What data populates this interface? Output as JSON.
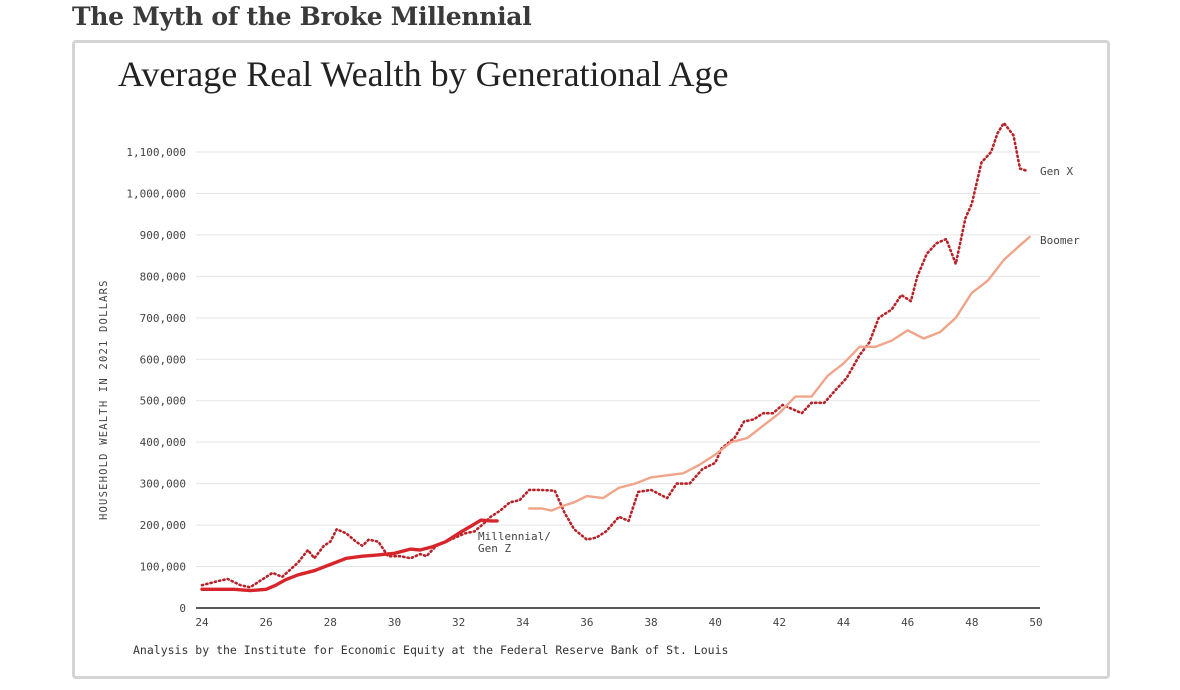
{
  "page_title": "The Myth of the Broke Millennial",
  "chart_data": {
    "type": "line",
    "title": "Average Real Wealth by Generational Age",
    "ylabel": "HOUSEHOLD WEALTH IN 2021 DOLLARS",
    "xlabel": "",
    "xlim": [
      24,
      50
    ],
    "ylim": [
      0,
      1100000
    ],
    "x_ticks": [
      "24",
      "26",
      "28",
      "30",
      "32",
      "34",
      "36",
      "38",
      "40",
      "42",
      "44",
      "46",
      "48",
      "50"
    ],
    "y_ticks": [
      "0",
      "100,000",
      "200,000",
      "300,000",
      "400,000",
      "500,000",
      "600,000",
      "700,000",
      "800,000",
      "900,000",
      "1,000,000",
      "1,100,000"
    ],
    "footnote": "Analysis by the Institute for Economic Equity at the Federal Reserve Bank of St. Louis",
    "colors": {
      "millennial": "#d7262b",
      "genx": "#b8232a",
      "boomer": "#f0a58a",
      "grid": "#e4e4e4",
      "text": "#444444"
    },
    "series": [
      {
        "name": "Gen X",
        "style": "dotted",
        "points": [
          [
            24,
            55000
          ],
          [
            24.5,
            65000
          ],
          [
            24.8,
            70000
          ],
          [
            25.2,
            55000
          ],
          [
            25.5,
            50000
          ],
          [
            25.8,
            65000
          ],
          [
            26.2,
            85000
          ],
          [
            26.5,
            75000
          ],
          [
            27,
            110000
          ],
          [
            27.3,
            140000
          ],
          [
            27.5,
            120000
          ],
          [
            27.8,
            150000
          ],
          [
            28,
            160000
          ],
          [
            28.2,
            190000
          ],
          [
            28.5,
            180000
          ],
          [
            28.8,
            160000
          ],
          [
            29,
            150000
          ],
          [
            29.2,
            165000
          ],
          [
            29.5,
            160000
          ],
          [
            29.8,
            125000
          ],
          [
            30.2,
            125000
          ],
          [
            30.5,
            120000
          ],
          [
            30.8,
            130000
          ],
          [
            31,
            125000
          ],
          [
            31.3,
            150000
          ],
          [
            31.6,
            160000
          ],
          [
            31.9,
            170000
          ],
          [
            32.2,
            180000
          ],
          [
            32.5,
            185000
          ],
          [
            32.8,
            205000
          ],
          [
            33,
            220000
          ],
          [
            33.3,
            235000
          ],
          [
            33.6,
            255000
          ],
          [
            33.9,
            260000
          ],
          [
            34.2,
            285000
          ],
          [
            34.5,
            285000
          ],
          [
            35,
            283000
          ],
          [
            35.3,
            230000
          ],
          [
            35.6,
            190000
          ],
          [
            36,
            165000
          ],
          [
            36.3,
            170000
          ],
          [
            36.6,
            185000
          ],
          [
            37,
            220000
          ],
          [
            37.3,
            210000
          ],
          [
            37.6,
            280000
          ],
          [
            38,
            285000
          ],
          [
            38.5,
            265000
          ],
          [
            38.8,
            300000
          ],
          [
            39.2,
            300000
          ],
          [
            39.6,
            335000
          ],
          [
            40,
            350000
          ],
          [
            40.2,
            385000
          ],
          [
            40.6,
            410000
          ],
          [
            40.9,
            450000
          ],
          [
            41.2,
            455000
          ],
          [
            41.5,
            470000
          ],
          [
            41.8,
            470000
          ],
          [
            42.1,
            490000
          ],
          [
            42.4,
            480000
          ],
          [
            42.7,
            470000
          ],
          [
            43,
            495000
          ],
          [
            43.4,
            495000
          ],
          [
            43.8,
            530000
          ],
          [
            44.1,
            555000
          ],
          [
            44.5,
            610000
          ],
          [
            44.8,
            640000
          ],
          [
            45.1,
            700000
          ],
          [
            45.5,
            720000
          ],
          [
            45.8,
            755000
          ],
          [
            46.1,
            740000
          ],
          [
            46.3,
            800000
          ],
          [
            46.6,
            855000
          ],
          [
            46.9,
            880000
          ],
          [
            47.2,
            890000
          ],
          [
            47.5,
            830000
          ],
          [
            47.8,
            940000
          ],
          [
            48,
            975000
          ],
          [
            48.3,
            1075000
          ],
          [
            48.6,
            1100000
          ],
          [
            48.8,
            1145000
          ],
          [
            49,
            1170000
          ],
          [
            49.3,
            1140000
          ],
          [
            49.5,
            1060000
          ],
          [
            49.7,
            1055000
          ]
        ]
      },
      {
        "name": "Boomer",
        "style": "solid",
        "points": [
          [
            34.2,
            240000
          ],
          [
            34.6,
            240000
          ],
          [
            34.9,
            235000
          ],
          [
            35.2,
            245000
          ],
          [
            35.6,
            255000
          ],
          [
            36,
            270000
          ],
          [
            36.5,
            265000
          ],
          [
            37,
            290000
          ],
          [
            37.5,
            300000
          ],
          [
            38,
            315000
          ],
          [
            38.5,
            320000
          ],
          [
            39,
            325000
          ],
          [
            39.5,
            345000
          ],
          [
            40,
            370000
          ],
          [
            40.5,
            400000
          ],
          [
            41,
            410000
          ],
          [
            41.5,
            440000
          ],
          [
            42,
            470000
          ],
          [
            42.5,
            510000
          ],
          [
            43,
            510000
          ],
          [
            43.5,
            560000
          ],
          [
            44,
            590000
          ],
          [
            44.5,
            630000
          ],
          [
            45,
            630000
          ],
          [
            45.5,
            645000
          ],
          [
            46,
            670000
          ],
          [
            46.5,
            650000
          ],
          [
            47,
            665000
          ],
          [
            47.5,
            700000
          ],
          [
            48,
            760000
          ],
          [
            48.5,
            790000
          ],
          [
            49,
            840000
          ],
          [
            49.5,
            875000
          ],
          [
            49.8,
            895000
          ]
        ]
      },
      {
        "name": "Millennial/ Gen Z",
        "style": "solid-bold",
        "points": [
          [
            24,
            45000
          ],
          [
            24.5,
            45000
          ],
          [
            25,
            45000
          ],
          [
            25.5,
            42000
          ],
          [
            26,
            45000
          ],
          [
            26.3,
            55000
          ],
          [
            26.6,
            68000
          ],
          [
            27,
            80000
          ],
          [
            27.5,
            90000
          ],
          [
            28,
            105000
          ],
          [
            28.5,
            120000
          ],
          [
            29,
            125000
          ],
          [
            29.5,
            128000
          ],
          [
            30,
            132000
          ],
          [
            30.5,
            142000
          ],
          [
            30.8,
            140000
          ],
          [
            31.2,
            148000
          ],
          [
            31.6,
            160000
          ],
          [
            32,
            180000
          ],
          [
            32.4,
            198000
          ],
          [
            32.7,
            212000
          ],
          [
            33,
            210000
          ],
          [
            33.2,
            210000
          ]
        ]
      }
    ],
    "series_labels": {
      "genx": "Gen X",
      "boomer": "Boomer",
      "millennial_line1": "Millennial/",
      "millennial_line2": "Gen Z"
    }
  }
}
